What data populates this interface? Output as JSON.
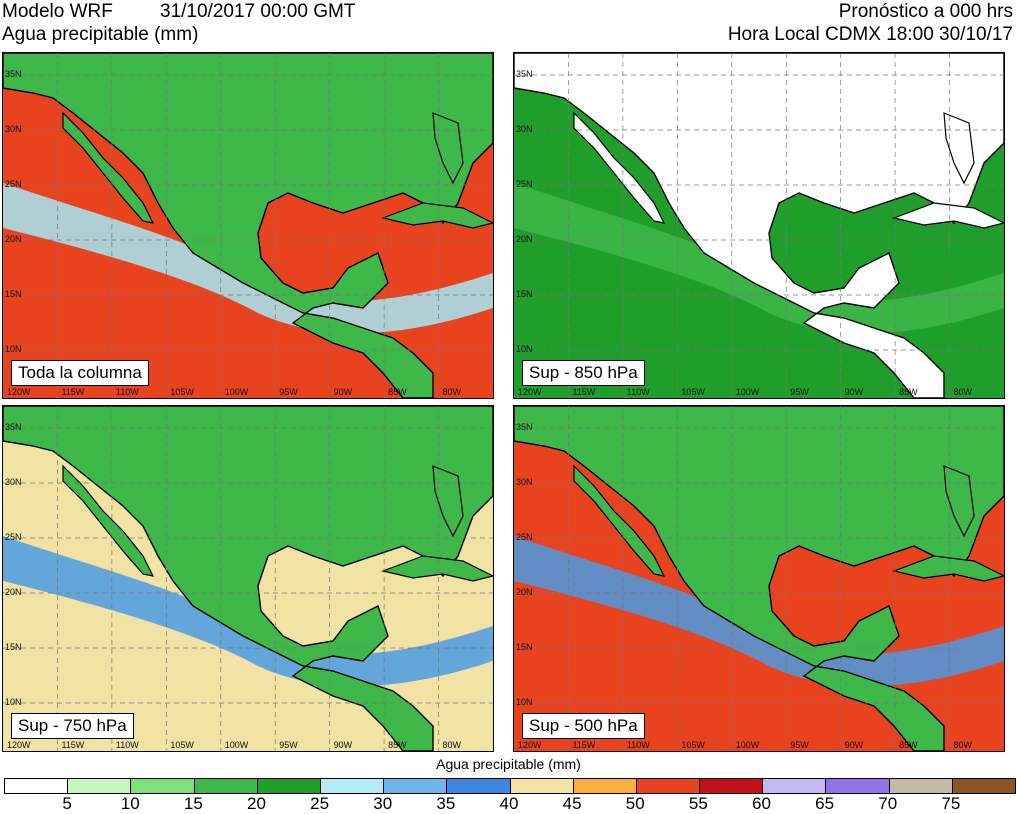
{
  "header": {
    "model": "Modelo WRF",
    "datetime": "31/10/2017 00:00 GMT",
    "variable": "Agua precipitable (mm)",
    "forecast": "Pronóstico a 000 hrs",
    "local_time": "Hora Local CDMX 18:00 30/10/17"
  },
  "panels": [
    {
      "label": "Toda la columna",
      "ocean_color": "#e8421f",
      "land_color": "#3fb84a",
      "coast_color": "#a6e8f5"
    },
    {
      "label": "Sup - 850 hPa",
      "ocean_color": "#1f9e2b",
      "land_color": "#ffffff",
      "coast_color": "#3fb84a"
    },
    {
      "label": "Sup - 750 hPa",
      "ocean_color": "#f2e2a3",
      "land_color": "#3fb84a",
      "coast_color": "#4a9be3"
    },
    {
      "label": "Sup - 500 hPa",
      "ocean_color": "#e8421f",
      "land_color": "#3fb84a",
      "coast_color": "#4a9be3"
    }
  ],
  "axes": {
    "lat_labels": [
      "35N",
      "30N",
      "25N",
      "20N",
      "15N",
      "10N"
    ],
    "lon_labels": [
      "120W",
      "115W",
      "110W",
      "105W",
      "100W",
      "95W",
      "90W",
      "85W",
      "80W"
    ]
  },
  "colorbar": {
    "title": "Agua precipitable (mm)",
    "colors": [
      "#ffffff",
      "#c6f5c0",
      "#7ee07a",
      "#3fb84a",
      "#1f9e2b",
      "#b3ecf7",
      "#6fb3ea",
      "#3f86e0",
      "#f2e2a3",
      "#f7b13a",
      "#e8421f",
      "#c0121a",
      "#c3b8f0",
      "#8f74e6",
      "#c4b8a8",
      "#8a5522"
    ],
    "ticks": [
      "5",
      "10",
      "15",
      "20",
      "25",
      "30",
      "35",
      "40",
      "45",
      "50",
      "55",
      "60",
      "65",
      "70",
      "75"
    ]
  }
}
